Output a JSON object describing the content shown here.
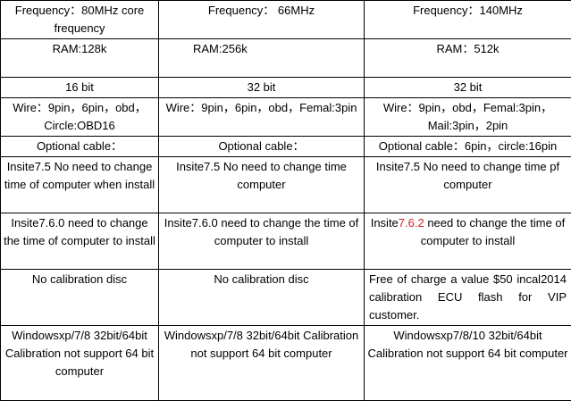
{
  "rows": [
    [
      "Frequency：80MHz core frequency",
      "Frequency：  66MHz",
      "Frequency：140MHz"
    ],
    [
      "RAM:128k",
      "RAM:256k",
      "RAM：512k"
    ],
    [
      "16 bit",
      "32 bit",
      "32 bit"
    ],
    [
      "Wire：9pin，6pin，obd，Circle:OBD16",
      "Wire：9pin，6pin，obd，Femal:3pin",
      "Wire：9pin，obd，Femal:3pin，Mail:3pin，2pin"
    ],
    [
      "Optional cable：",
      "Optional cable：",
      "Optional cable：6pin，circle:16pin"
    ],
    [
      "Insite7.5 No need to change time of computer when install",
      "Insite7.5 No need to change time computer",
      "Insite7.5 No need to change time pf computer"
    ],
    [
      "Insite7.6.0 need to change the time  of computer to install",
      "Insite7.6.0 need to change the time of computer to install",
      {
        "before": "Insite",
        "highlight": "7.6.2",
        "after": " need to change the time of computer to install"
      }
    ],
    [
      "No calibration disc",
      "No calibration disc",
      "Free of charge a value $50 incal2014 calibration ECU flash for VIP customer."
    ],
    [
      "Windowsxp/7/8 32bit/64bit Calibration not support 64 bit computer",
      "Windowsxp/7/8 32bit/64bit Calibration not support 64 bit computer",
      "Windowsxp7/8/10 32bit/64bit Calibration not support 64 bit computer"
    ]
  ],
  "highlight_color": "#d22222"
}
